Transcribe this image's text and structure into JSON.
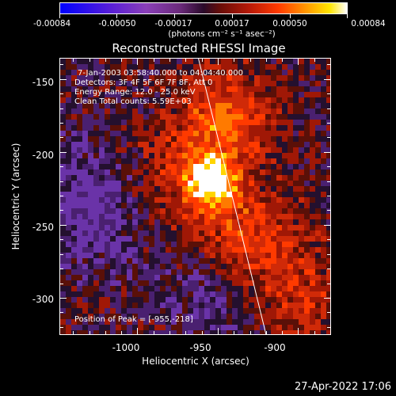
{
  "colorbar": {
    "tick_labels": [
      "-0.00084",
      "-0.00050",
      "-0.00017",
      "0.00017",
      "0.00050",
      "0.00084"
    ],
    "units": "(photons cm⁻² s⁻¹ asec⁻²)"
  },
  "title": "Reconstructed RHESSI Image",
  "annotations": {
    "time_range": "7-Jan-2003 03:58:40.000 to 04:04:40.000",
    "detectors": "Detectors: 3F 4F 5F 6F 7F 8F, Att 0",
    "energy_range": "Energy Range: 12.0 - 25.0 keV",
    "method": "Clean    Total counts: 5.59E+03",
    "peak": "Position of Peak = [-955,-218]"
  },
  "axes": {
    "xlabel": "Heliocentric X (arcsec)",
    "ylabel": "Heliocentric Y (arcsec)",
    "x_ticks": [
      "-1000",
      "-950",
      "-900"
    ],
    "y_ticks": [
      "-150",
      "-200",
      "-250",
      "-300"
    ],
    "xlim": [
      -1048,
      -880
    ],
    "ylim": [
      -325,
      -136
    ]
  },
  "image_features": {
    "peak_position": [
      -955,
      -218
    ],
    "limb_line_points": [
      [
        -962,
        -136
      ],
      [
        -920,
        -325
      ]
    ],
    "colors": {
      "hot": "#ffffff",
      "bright": "#ffd500",
      "mid": "#ff3a00",
      "dim": "#a01806",
      "faint": "#5a1008",
      "neg": "#4a2070",
      "neg_strong": "#6a33a8"
    }
  },
  "footer": {
    "timestamp": "27-Apr-2022 17:06"
  }
}
